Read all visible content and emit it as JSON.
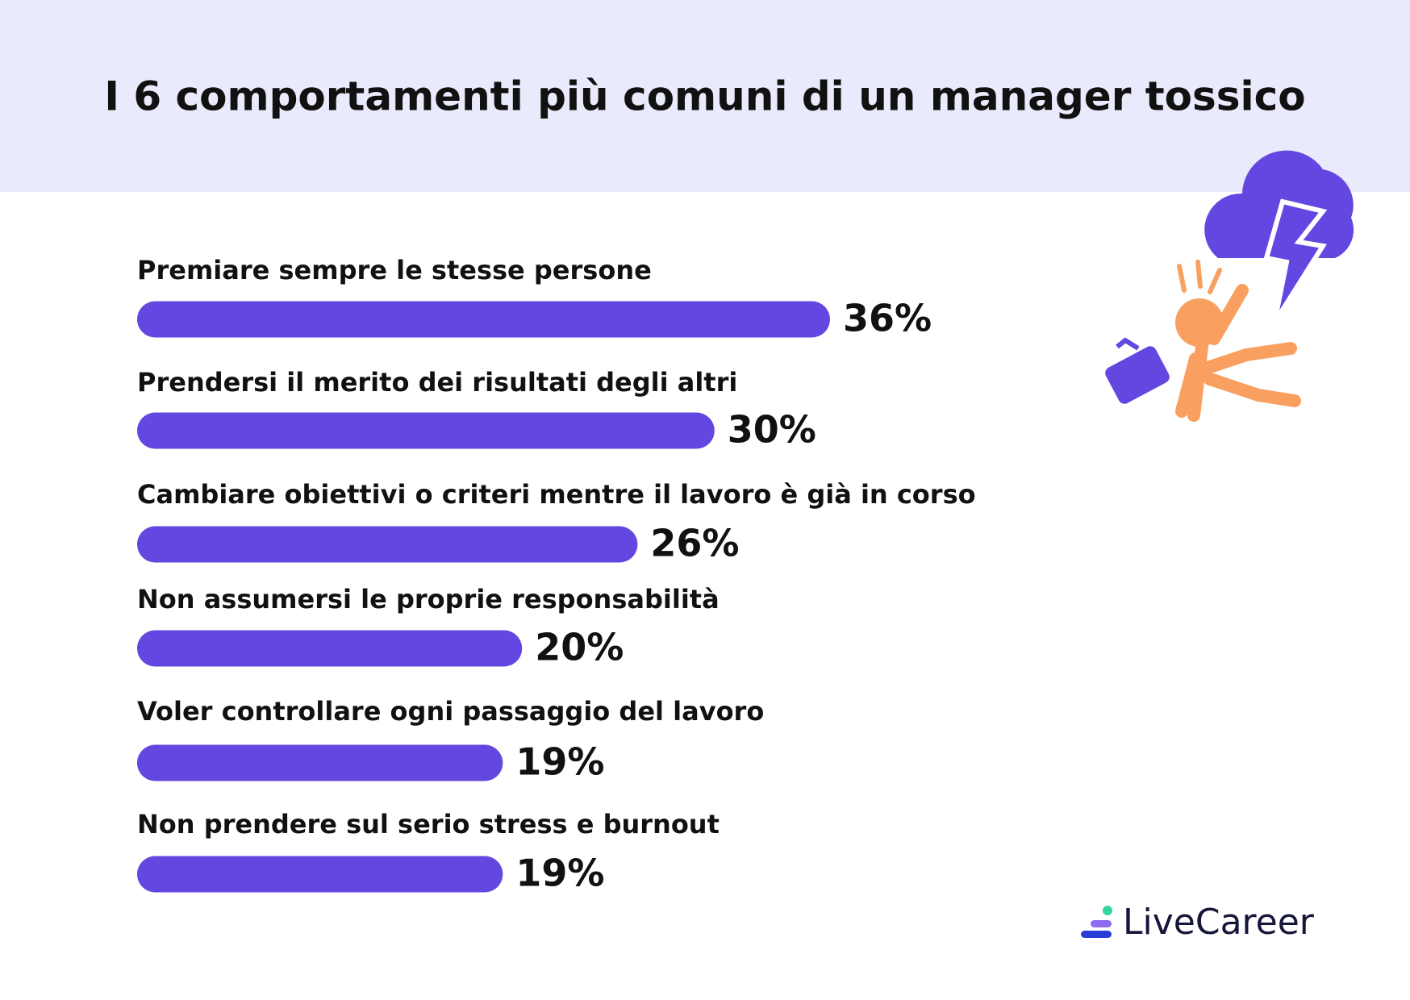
{
  "chart_data": {
    "type": "bar",
    "orientation": "horizontal",
    "title": "I 6 comportamenti più comuni di un manager tossico",
    "categories": [
      "Premiare sempre le stesse persone",
      "Prendersi il merito dei risultati degli altri",
      "Cambiare obiettivi o criteri mentre il lavoro è già in corso",
      "Non assumersi le proprie responsabilità",
      "Voler controllare ogni passaggio del lavoro",
      "Non prendere sul serio stress e burnout"
    ],
    "values": [
      36,
      30,
      26,
      20,
      19,
      19
    ],
    "value_labels": [
      "36%",
      "30%",
      "26%",
      "20%",
      "19%",
      "19%"
    ],
    "color": "#6347e0",
    "logo": "LiveCareer"
  }
}
